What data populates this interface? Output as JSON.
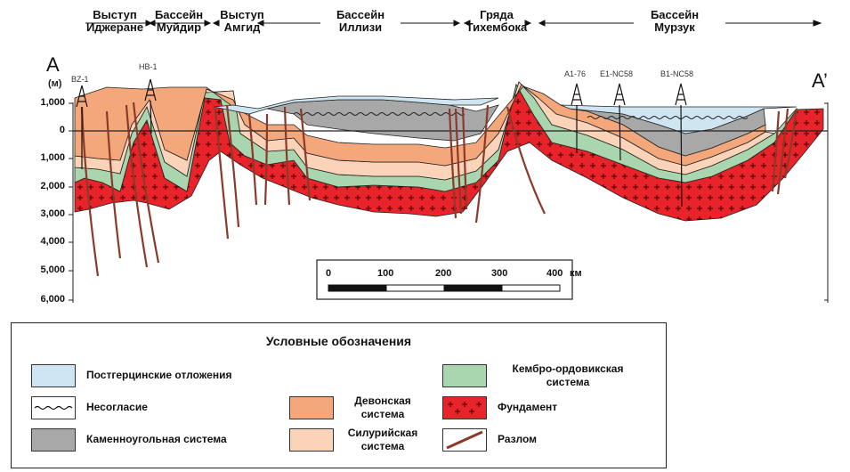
{
  "regions": [
    {
      "id": "r1",
      "line1": "Выступ",
      "line2": "Иджеране"
    },
    {
      "id": "r2",
      "line1": "Бассейн",
      "line2": "Муйдир"
    },
    {
      "id": "r3",
      "line1": "Выступ",
      "line2": "Амгид"
    },
    {
      "id": "r4",
      "line1": "Бассейн",
      "line2": "Иллизи"
    },
    {
      "id": "r5",
      "line1": "Гряда",
      "line2": "Тихембока"
    },
    {
      "id": "r6",
      "line1": "Бассейн",
      "line2": "Мурзук"
    }
  ],
  "section": {
    "left_label": "A",
    "right_label": "A’",
    "unit": "(м)"
  },
  "depth_ticks": [
    "1,000",
    "0",
    "1,000",
    "2,000",
    "3,000",
    "4,000",
    "5,000",
    "6,000"
  ],
  "wells": [
    "BZ-1",
    "HB-1",
    "A1-76",
    "E1-NC58",
    "B1-NC58"
  ],
  "scale": {
    "ticks": [
      "0",
      "100",
      "200",
      "300",
      "400"
    ],
    "unit": "км"
  },
  "legend": {
    "title": "Условные обозначения",
    "items": {
      "post_hercynian": "Постгерцинские отложения",
      "unconformity": "Несогласие",
      "carboniferous": "Каменноугольная система",
      "devonian": "Девонская система",
      "silurian": "Силурийская система",
      "cambro_ordovician": "Кембро-ордовикская система",
      "basement": "Фундамент",
      "fault": "Разлом"
    }
  },
  "colors": {
    "post_hercynian": "#cfe6f2",
    "carboniferous": "#a8a8a8",
    "devonian": "#f4a77a",
    "silurian": "#fbd3b8",
    "cambro_ordovician": "#a9d6ae",
    "basement": "#e8232a",
    "fault": "#8b3a2a"
  }
}
